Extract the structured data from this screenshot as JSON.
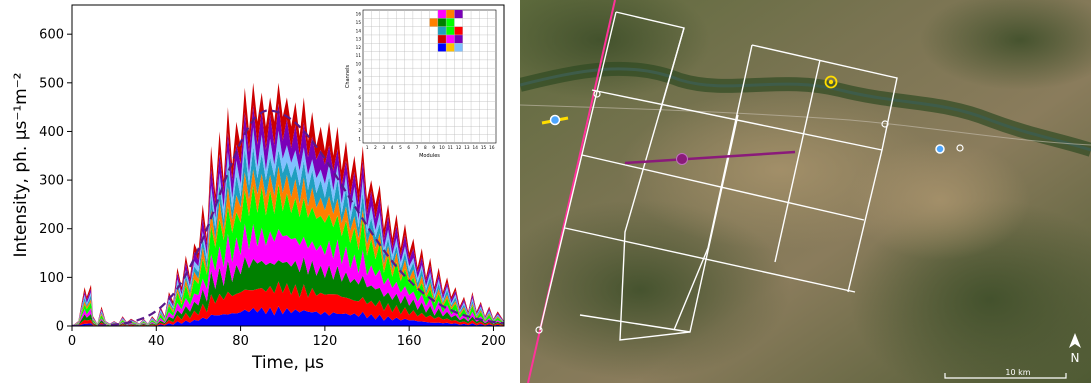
{
  "chart_data": {
    "type": "area",
    "xlabel": "Time, μs",
    "ylabel": "Intensity, ph. μs⁻¹m⁻²",
    "xlim": [
      0,
      205
    ],
    "ylim": [
      0,
      660
    ],
    "xticks": [
      0,
      40,
      80,
      120,
      160,
      200
    ],
    "yticks": [
      0,
      100,
      200,
      300,
      400,
      500,
      600
    ],
    "grid": false,
    "stacked_layer_colors": [
      "#0000ff",
      "#ff0000",
      "#008000",
      "#ff00ff",
      "#00ff00",
      "#ff8000",
      "#1f9fbf",
      "#80c0ff",
      "#7a00b8",
      "#cc0000"
    ],
    "total_envelope": {
      "x": [
        0,
        3,
        6,
        7,
        9,
        10,
        12,
        14,
        16,
        18,
        20,
        22,
        24,
        26,
        28,
        30,
        32,
        34,
        36,
        38,
        40,
        42,
        44,
        46,
        48,
        50,
        52,
        54,
        56,
        58,
        60,
        62,
        64,
        66,
        68,
        70,
        72,
        74,
        76,
        78,
        80,
        82,
        84,
        86,
        88,
        90,
        92,
        94,
        96,
        98,
        100,
        102,
        104,
        106,
        108,
        110,
        112,
        114,
        116,
        118,
        120,
        122,
        124,
        126,
        128,
        130,
        132,
        134,
        136,
        138,
        140,
        142,
        144,
        146,
        148,
        150,
        152,
        154,
        156,
        158,
        160,
        162,
        164,
        166,
        168,
        170,
        172,
        174,
        176,
        178,
        180,
        182,
        184,
        186,
        188,
        190,
        192,
        194,
        196,
        198,
        200,
        202,
        205
      ],
      "y": [
        0,
        10,
        80,
        60,
        85,
        20,
        5,
        40,
        10,
        5,
        10,
        5,
        20,
        8,
        15,
        10,
        5,
        15,
        5,
        20,
        10,
        40,
        20,
        70,
        50,
        120,
        80,
        145,
        100,
        170,
        150,
        250,
        180,
        370,
        270,
        400,
        300,
        450,
        330,
        420,
        370,
        490,
        400,
        500,
        420,
        480,
        410,
        470,
        420,
        500,
        430,
        470,
        410,
        460,
        390,
        470,
        380,
        440,
        370,
        410,
        360,
        420,
        350,
        410,
        320,
        380,
        300,
        350,
        280,
        370,
        260,
        300,
        250,
        290,
        200,
        250,
        180,
        230,
        160,
        210,
        150,
        180,
        120,
        160,
        100,
        140,
        80,
        120,
        70,
        100,
        60,
        80,
        40,
        60,
        30,
        70,
        30,
        50,
        20,
        40,
        15,
        30,
        10
      ]
    },
    "fit_curve": {
      "style": "dashed",
      "color": "#5a1a8a",
      "center": 93,
      "peak": 443,
      "sigma_left": 23,
      "sigma_right": 38
    },
    "inset": {
      "type": "heatmap-grid",
      "xlabel": "Modules",
      "ylabel": "Channels",
      "xticks": [
        1,
        2,
        3,
        4,
        5,
        6,
        7,
        8,
        9,
        10,
        11,
        12,
        13,
        14,
        15,
        16
      ],
      "yticks": [
        1,
        2,
        3,
        4,
        5,
        6,
        7,
        8,
        9,
        10,
        11,
        12,
        13,
        14,
        15,
        16
      ],
      "active_cells": [
        {
          "module": 10,
          "channel": 16,
          "color": "#ff00ff"
        },
        {
          "module": 11,
          "channel": 16,
          "color": "#ff8000"
        },
        {
          "module": 12,
          "channel": 16,
          "color": "#7a00b8"
        },
        {
          "module": 9,
          "channel": 15,
          "color": "#ff8000"
        },
        {
          "module": 10,
          "channel": 15,
          "color": "#008000"
        },
        {
          "module": 11,
          "channel": 15,
          "color": "#00ff00"
        },
        {
          "module": 10,
          "channel": 14,
          "color": "#1f9fbf"
        },
        {
          "module": 11,
          "channel": 14,
          "color": "#00ff00"
        },
        {
          "module": 12,
          "channel": 14,
          "color": "#ff0000"
        },
        {
          "module": 10,
          "channel": 13,
          "color": "#cc0000"
        },
        {
          "module": 11,
          "channel": 13,
          "color": "#ff00ff"
        },
        {
          "module": 12,
          "channel": 13,
          "color": "#7a00b8"
        },
        {
          "module": 10,
          "channel": 12,
          "color": "#0000ff"
        },
        {
          "module": 11,
          "channel": 12,
          "color": "#ffc000"
        },
        {
          "module": 12,
          "channel": 12,
          "color": "#80c0ff"
        }
      ]
    }
  },
  "map": {
    "scale_label": "10 km",
    "north_label": "N",
    "colors": {
      "grid_lines": "#ffffff",
      "track_line": "#ff3399",
      "purple_track": "#8a1a7a",
      "yellow_marker": "#ffdd00",
      "blue_marker": "#4da6ff"
    }
  }
}
